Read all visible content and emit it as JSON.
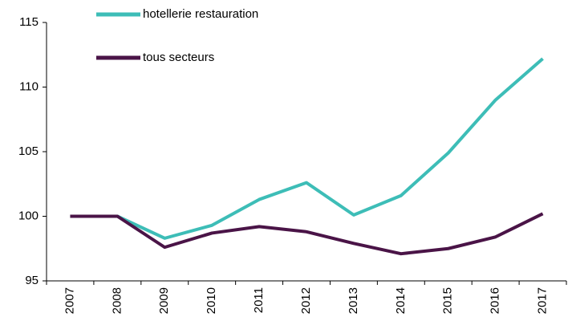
{
  "chart_data": {
    "type": "line",
    "categories": [
      "2007",
      "2008",
      "2009",
      "2010",
      "2011",
      "2012",
      "2013",
      "2014",
      "2015",
      "2016",
      "2017"
    ],
    "series": [
      {
        "name": "hotellerie restauration",
        "color": "#3dbdb7",
        "values": [
          100,
          100,
          98.3,
          99.3,
          101.3,
          102.6,
          100.1,
          101.6,
          104.9,
          109.0,
          112.2
        ]
      },
      {
        "name": "tous secteurs",
        "color": "#4a1447",
        "values": [
          100,
          100,
          97.6,
          98.7,
          99.2,
          98.8,
          97.9,
          97.1,
          97.5,
          98.4,
          100.2
        ]
      }
    ],
    "ylim": [
      95,
      115
    ],
    "yticks": [
      95,
      100,
      105,
      110,
      115
    ],
    "grid": false,
    "legend": "top-left"
  }
}
